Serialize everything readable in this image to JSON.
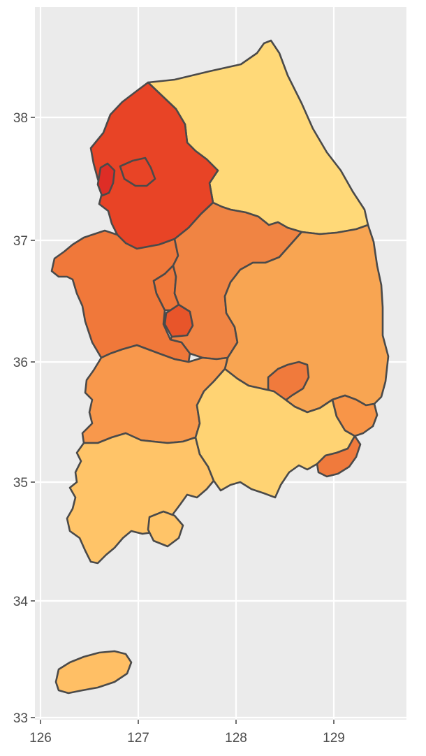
{
  "map": {
    "x_ticks": [
      "126",
      "127",
      "128",
      "129"
    ],
    "y_ticks": [
      "33",
      "34",
      "35",
      "36",
      "37",
      "38"
    ],
    "xlim": [
      125.97,
      129.75
    ],
    "ylim": [
      32.98,
      38.67
    ],
    "colors": {
      "panel": "#ebebeb",
      "grid": "#ffffff",
      "border": "#4a4a4a",
      "text": "#4d4d4d"
    },
    "regions": [
      {
        "name": "Seoul",
        "fill": "#de2d26"
      },
      {
        "name": "Gyeonggi",
        "fill": "#e84426"
      },
      {
        "name": "Gangwon",
        "fill": "#ffd978"
      },
      {
        "name": "Chungbuk",
        "fill": "#f08443"
      },
      {
        "name": "Chungnam",
        "fill": "#f0783a"
      },
      {
        "name": "Sejong",
        "fill": "#f0783a"
      },
      {
        "name": "Daejeon",
        "fill": "#e8552a"
      },
      {
        "name": "Gyeongbuk",
        "fill": "#f8a552"
      },
      {
        "name": "Daegu",
        "fill": "#f07a3c"
      },
      {
        "name": "Jeonbuk",
        "fill": "#f8984c"
      },
      {
        "name": "Jeonnam",
        "fill": "#ffc468"
      },
      {
        "name": "Gyeongnam",
        "fill": "#ffd373"
      },
      {
        "name": "Ulsan",
        "fill": "#f89548"
      },
      {
        "name": "Busan",
        "fill": "#f07a3c"
      },
      {
        "name": "Jeju",
        "fill": "#ffbf65"
      }
    ]
  }
}
